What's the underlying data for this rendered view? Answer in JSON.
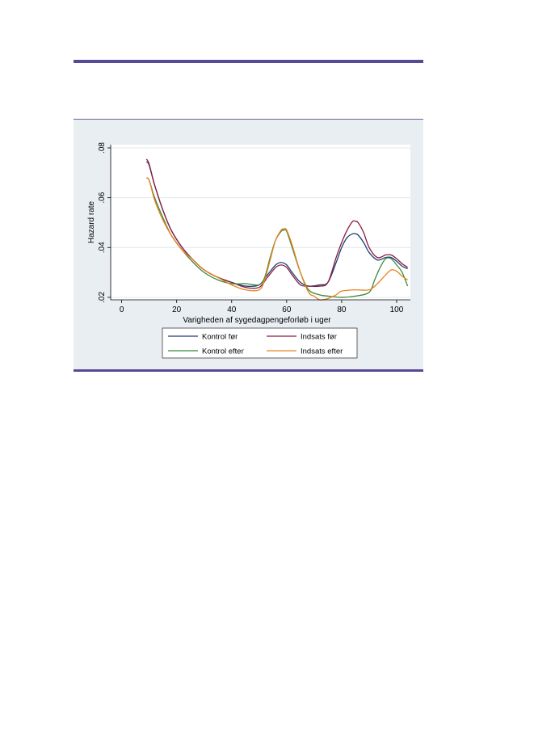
{
  "chart_data": {
    "type": "line",
    "xlabel": "Varigheden af sygedagpengeforløb i uger",
    "ylabel": "Hazard rate",
    "xlim": [
      -4,
      105
    ],
    "ylim": [
      0.019,
      0.0813
    ],
    "xticks": [
      0,
      20,
      40,
      60,
      80,
      100
    ],
    "xtick_labels": [
      "0",
      "20",
      "40",
      "60",
      "80",
      "100"
    ],
    "yticks": [
      0.02,
      0.04,
      0.06,
      0.08
    ],
    "ytick_labels": [
      ".02",
      ".04",
      ".06",
      ".08"
    ],
    "grid": "horizontal",
    "legend_position": "bottom",
    "series": [
      {
        "name": "Kontrol før",
        "color": "#1a3f78",
        "x": [
          9,
          10,
          12,
          15,
          18,
          22,
          26,
          30,
          35,
          40,
          45,
          50,
          53,
          56,
          58,
          60,
          62,
          65,
          68,
          72,
          75,
          78,
          80,
          82,
          84,
          85,
          86,
          88,
          90,
          93,
          96,
          98,
          100,
          102,
          104
        ],
        "y": [
          0.0745,
          0.073,
          0.065,
          0.055,
          0.047,
          0.04,
          0.035,
          0.031,
          0.028,
          0.026,
          0.0245,
          0.025,
          0.029,
          0.033,
          0.034,
          0.033,
          0.03,
          0.026,
          0.0245,
          0.025,
          0.026,
          0.034,
          0.04,
          0.044,
          0.0455,
          0.0455,
          0.045,
          0.042,
          0.038,
          0.035,
          0.036,
          0.036,
          0.0345,
          0.0325,
          0.0315
        ]
      },
      {
        "name": "Indsats før",
        "color": "#8b1c3c",
        "x": [
          9,
          10,
          12,
          15,
          18,
          22,
          26,
          30,
          35,
          40,
          45,
          50,
          53,
          56,
          58,
          60,
          62,
          65,
          68,
          72,
          75,
          78,
          80,
          82,
          84,
          85,
          86,
          88,
          90,
          93,
          96,
          98,
          100,
          102,
          104
        ],
        "y": [
          0.0755,
          0.0735,
          0.065,
          0.055,
          0.047,
          0.04,
          0.035,
          0.031,
          0.028,
          0.026,
          0.024,
          0.024,
          0.028,
          0.032,
          0.033,
          0.032,
          0.029,
          0.025,
          0.0245,
          0.0245,
          0.026,
          0.036,
          0.042,
          0.047,
          0.0505,
          0.0505,
          0.05,
          0.046,
          0.04,
          0.036,
          0.037,
          0.037,
          0.0355,
          0.0335,
          0.032
        ]
      },
      {
        "name": "Kontrol efter",
        "color": "#3d8a3a",
        "x": [
          9,
          10,
          12,
          15,
          18,
          22,
          26,
          30,
          35,
          40,
          45,
          50,
          52,
          54,
          56,
          58,
          59,
          60,
          62,
          65,
          68,
          72,
          75,
          80,
          85,
          90,
          92,
          94,
          96,
          98,
          100,
          102,
          104
        ],
        "y": [
          0.068,
          0.067,
          0.06,
          0.052,
          0.045,
          0.039,
          0.034,
          0.03,
          0.027,
          0.0255,
          0.0255,
          0.025,
          0.028,
          0.036,
          0.043,
          0.0465,
          0.047,
          0.0465,
          0.04,
          0.03,
          0.023,
          0.021,
          0.0205,
          0.02,
          0.0205,
          0.022,
          0.027,
          0.032,
          0.0355,
          0.0355,
          0.033,
          0.03,
          0.0245
        ]
      },
      {
        "name": "Indsats efter",
        "color": "#e8821e",
        "x": [
          9,
          10,
          12,
          15,
          18,
          22,
          26,
          30,
          35,
          40,
          45,
          50,
          52,
          54,
          56,
          58,
          59,
          60,
          62,
          65,
          68,
          70,
          72,
          75,
          78,
          80,
          85,
          90,
          93,
          96,
          98,
          100,
          102,
          104
        ],
        "y": [
          0.068,
          0.067,
          0.059,
          0.051,
          0.045,
          0.039,
          0.035,
          0.031,
          0.028,
          0.025,
          0.023,
          0.023,
          0.027,
          0.035,
          0.043,
          0.047,
          0.0475,
          0.047,
          0.041,
          0.03,
          0.022,
          0.0205,
          0.019,
          0.0195,
          0.021,
          0.0225,
          0.023,
          0.023,
          0.0255,
          0.029,
          0.031,
          0.0305,
          0.0285,
          0.027
        ]
      }
    ]
  }
}
